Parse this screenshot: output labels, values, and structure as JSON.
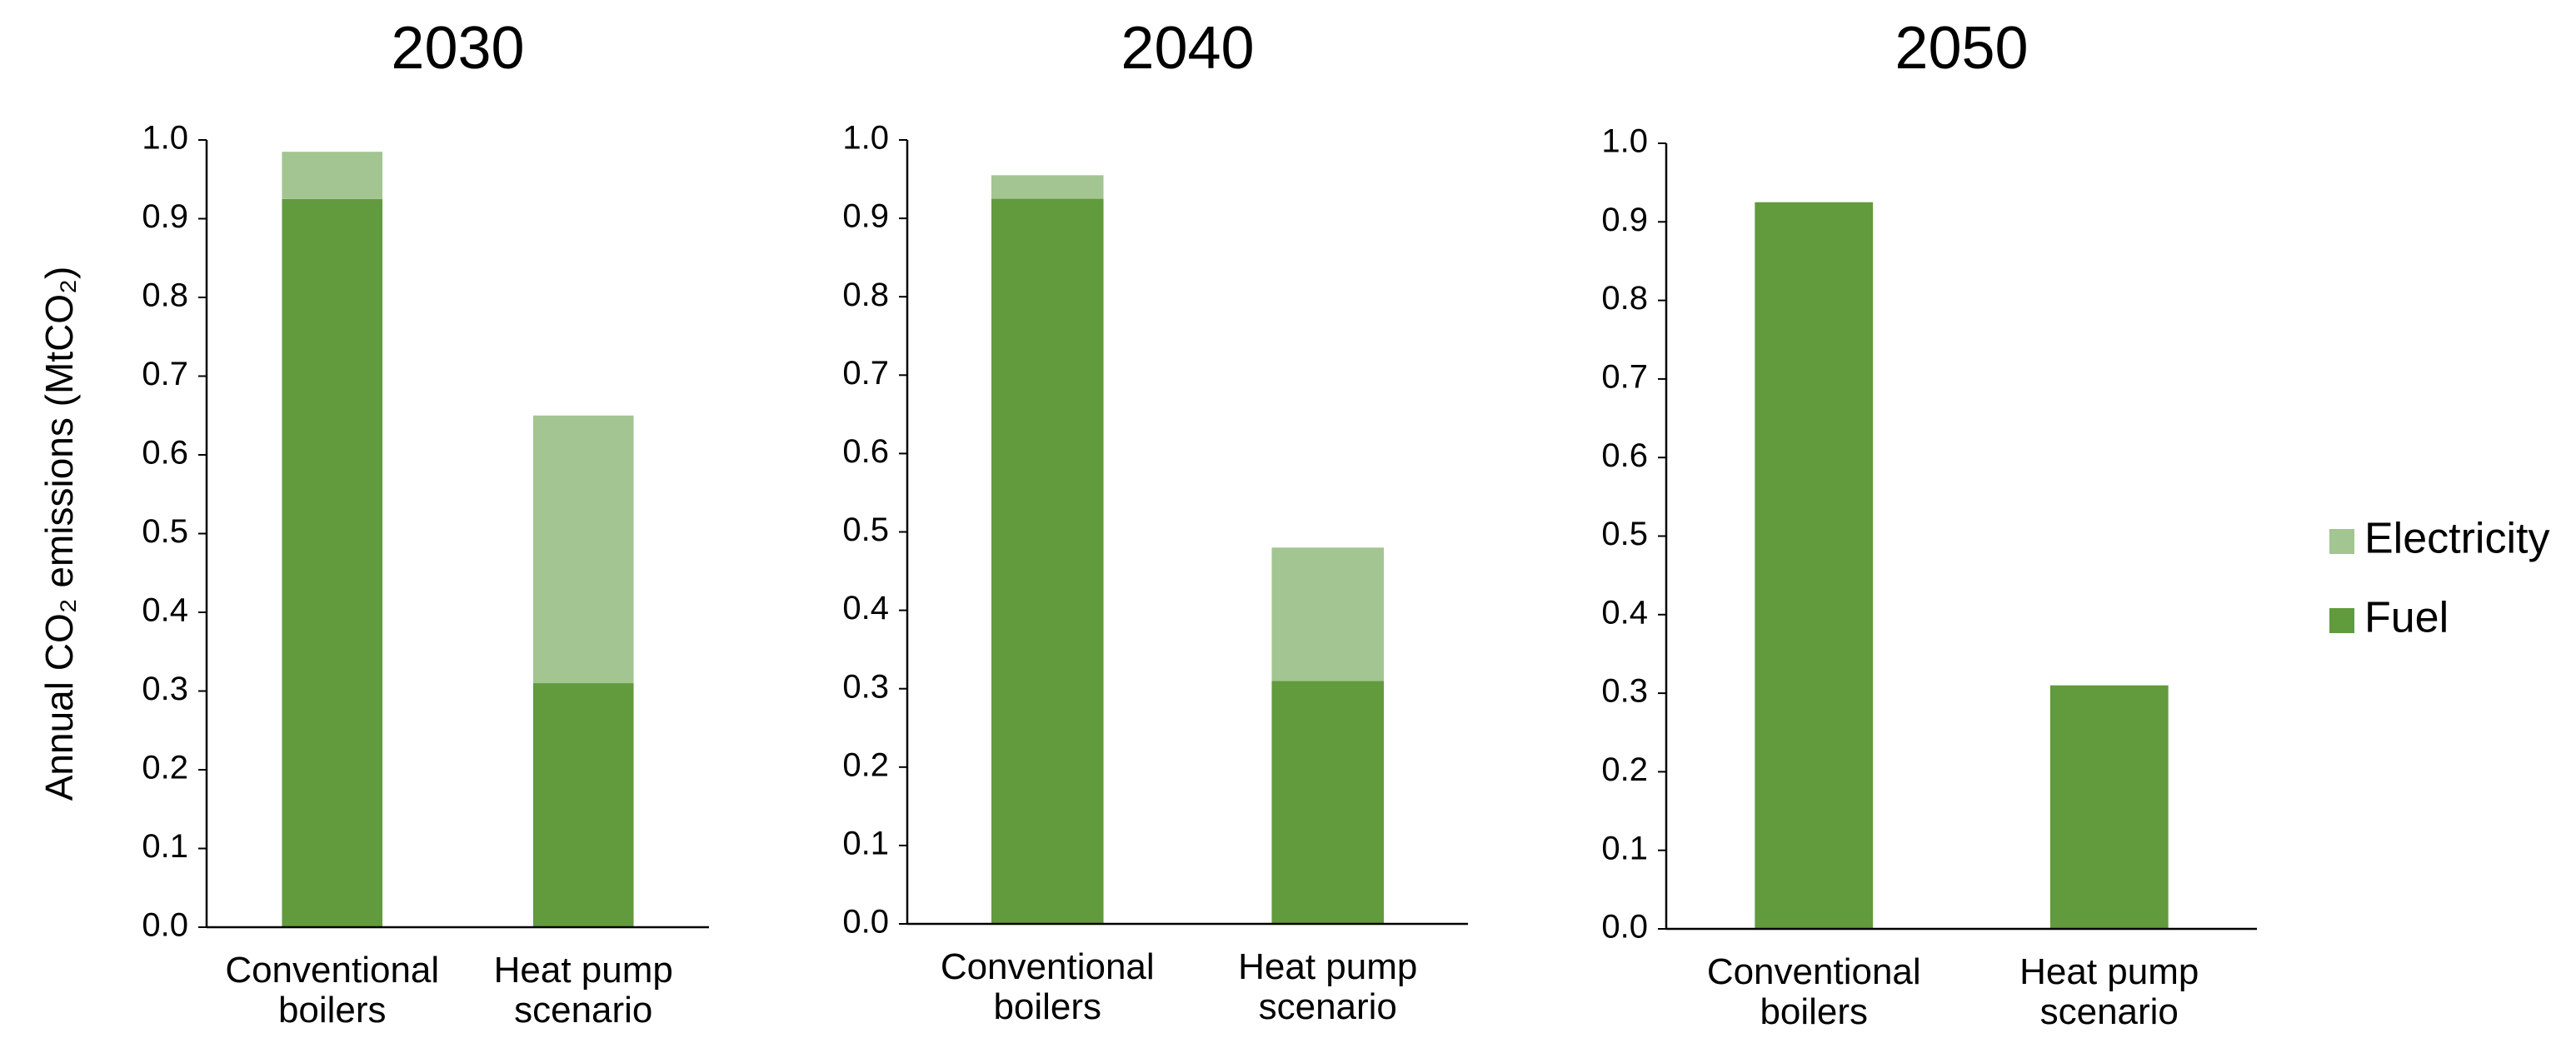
{
  "chart_data": [
    {
      "type": "bar",
      "stacked": true,
      "title": "2030",
      "y_label": "Annual CO₂ emissions (MtCO₂)",
      "categories": [
        "Conventional boilers",
        "Heat pump scenario"
      ],
      "series": [
        {
          "name": "Fuel",
          "color": "#629a3e",
          "values": [
            0.925,
            0.31
          ]
        },
        {
          "name": "Electricity",
          "color": "#a3c592",
          "values": [
            0.06,
            0.34
          ]
        }
      ],
      "ylim": [
        0,
        1
      ],
      "yticks": [
        {
          "value": 0,
          "label": "0.0"
        },
        0.1,
        0.2,
        0.3,
        0.4,
        0.5,
        0.6,
        0.7,
        0.8,
        0.9,
        {
          "value": 1,
          "label": "1.0"
        }
      ]
    },
    {
      "type": "bar",
      "stacked": true,
      "title": "2040",
      "categories": [
        "Conventional boilers",
        "Heat pump scenario"
      ],
      "series": [
        {
          "name": "Fuel",
          "color": "#629a3e",
          "values": [
            0.925,
            0.31
          ]
        },
        {
          "name": "Electricity",
          "color": "#a3c592",
          "values": [
            0.03,
            0.17
          ]
        }
      ],
      "ylim": [
        0,
        1
      ],
      "yticks": [
        {
          "value": 0,
          "label": "0.0"
        },
        0.1,
        0.2,
        0.3,
        0.4,
        0.5,
        0.6,
        0.7,
        0.8,
        0.9,
        {
          "value": 1,
          "label": "1.0"
        }
      ]
    },
    {
      "type": "bar",
      "stacked": true,
      "title": "2050",
      "categories": [
        "Conventional boilers",
        "Heat pump scenario"
      ],
      "series": [
        {
          "name": "Fuel",
          "color": "#629a3e",
          "values": [
            0.925,
            0.31
          ]
        },
        {
          "name": "Electricity",
          "color": "#a3c592",
          "values": [
            0,
            0
          ]
        }
      ],
      "ylim": [
        0,
        1
      ],
      "yticks": [
        {
          "value": 0,
          "label": "0.0"
        },
        0.1,
        0.2,
        0.3,
        0.4,
        0.5,
        0.6,
        0.7,
        0.8,
        0.9,
        {
          "value": 1,
          "label": "1.0"
        }
      ],
      "legend": "right"
    }
  ]
}
